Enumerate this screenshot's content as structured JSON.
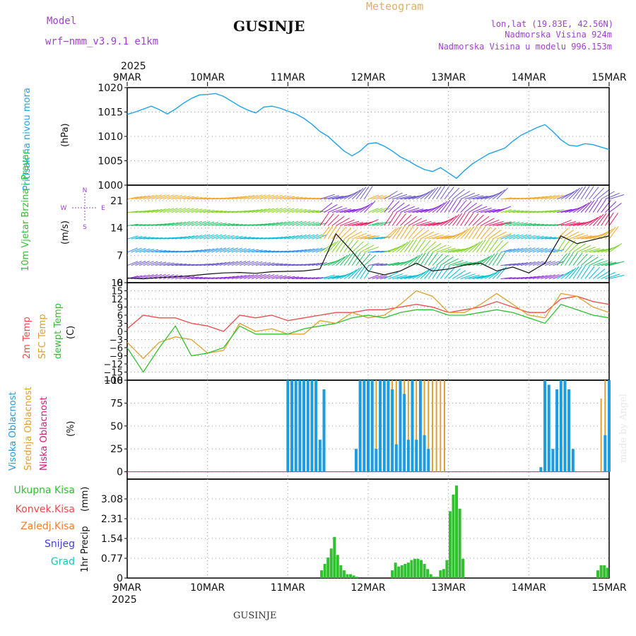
{
  "header": {
    "model_label": "Model",
    "model_name": "wrf−nmm_v3.9.1 e1km",
    "station": "GUSINJE",
    "product": "Meteogram",
    "lonlat": "lon,lat (19.83E, 42.56N)",
    "altitude": "Nadmorska Visina 924m",
    "model_altitude": "Nadmorska Visina u modelu 996.153m",
    "footer_station": "GUSINJE",
    "credit": "made by Angel"
  },
  "time_axis": {
    "year": "2025",
    "labels": [
      "9MAR",
      "10MAR",
      "11MAR",
      "12MAR",
      "13MAR",
      "14MAR",
      "15MAR"
    ]
  },
  "colors": {
    "pressure": "#1fa3e6",
    "high_cloud": "#1f9be0",
    "mid_cloud": "#e0a030",
    "low_cloud": "#d0207a",
    "temp2m": "#f04a4a",
    "sfc_temp": "#e0a030",
    "dewpoint": "#30c030",
    "precip": "#30c030",
    "meta": "#a040d0"
  },
  "chart_data": [
    {
      "type": "line",
      "panel": "pressure",
      "ylabel_title": "Pritisak na nivou mora",
      "ylabel_unit": "(hPa)",
      "ylim": [
        1000,
        1020
      ],
      "yticks": [
        1000,
        1005,
        1010,
        1015,
        1020
      ],
      "grid": true,
      "series": [
        {
          "x": [
            0,
            0.1,
            0.2,
            0.3,
            0.4,
            0.5,
            0.6,
            0.7,
            0.8,
            0.9,
            1.0,
            1.1,
            1.2,
            1.3,
            1.4,
            1.5,
            1.6,
            1.7,
            1.8,
            1.9,
            2.0,
            2.1,
            2.2,
            2.3,
            2.4,
            2.5,
            2.6,
            2.7,
            2.8,
            2.9,
            3.0,
            3.1,
            3.2,
            3.3,
            3.4,
            3.5,
            3.6,
            3.7,
            3.8,
            3.9,
            4.0,
            4.1,
            4.2,
            4.3,
            4.4,
            4.5,
            4.6,
            4.7,
            4.8,
            4.9,
            5.0,
            5.1,
            5.2,
            5.3,
            5.4,
            5.5,
            5.6,
            5.7,
            5.8,
            5.9,
            6.0
          ],
          "values": [
            1014.5,
            1015,
            1015.6,
            1016.2,
            1015.5,
            1014.6,
            1015.6,
            1016.8,
            1017.8,
            1018.5,
            1018.6,
            1018.8,
            1018.2,
            1017.2,
            1016.2,
            1015.4,
            1014.8,
            1016,
            1016.2,
            1015.8,
            1015.2,
            1014.6,
            1013.7,
            1012.5,
            1011,
            1010,
            1008.5,
            1007,
            1006,
            1007,
            1008.5,
            1008.7,
            1008,
            1007,
            1005.8,
            1005,
            1004,
            1003.2,
            1002.8,
            1003.6,
            1002.5,
            1001.4,
            1003,
            1004.4,
            1005.4,
            1006.4,
            1007,
            1007.6,
            1009,
            1010.2,
            1011,
            1011.8,
            1012.4,
            1011,
            1009.3,
            1008.2,
            1008,
            1008.5,
            1008.3,
            1007.8,
            1007.3
          ]
        }
      ]
    },
    {
      "type": "line",
      "panel": "wind",
      "ylabel_title": "10m Vjetar Brzina i Pravac",
      "ylabel_unit": "(m/s)",
      "compass": [
        "N",
        "E",
        "S",
        "W"
      ],
      "ylim": [
        0,
        25
      ],
      "yticks": [
        0,
        7,
        14,
        21
      ],
      "grid": true,
      "series": [
        {
          "name": "",
          "x": [
            0,
            0.2,
            0.4,
            0.6,
            0.8,
            1.0,
            1.2,
            1.4,
            1.6,
            1.8,
            2.0,
            2.2,
            2.4,
            2.6,
            2.8,
            3.0,
            3.2,
            3.4,
            3.6,
            3.8,
            4.0,
            4.2,
            4.4,
            4.6,
            4.8,
            5.0,
            5.2,
            5.4,
            5.6,
            5.8,
            6.0
          ],
          "values": [
            1.2,
            1.0,
            1.3,
            1.5,
            1.8,
            2.2,
            2.5,
            2.6,
            2.4,
            2.8,
            2.9,
            3.0,
            3.5,
            12.5,
            8.0,
            3.0,
            2.0,
            3.0,
            5.0,
            3.0,
            3.5,
            4.5,
            5.0,
            3.0,
            4.0,
            2.5,
            5.0,
            12.0,
            10.0,
            11.0,
            12.0
          ]
        }
      ]
    },
    {
      "type": "line",
      "panel": "temperature",
      "ylabel_title_1": "2m Temp",
      "ylabel_title_2": "SFC Temp",
      "ylabel_title_3": "dewpt Temp",
      "ylabel_unit": "(C)",
      "ylim": [
        -18,
        18
      ],
      "yticks": [
        -18,
        -15,
        -12,
        -9,
        -6,
        -3,
        0,
        3,
        6,
        9,
        12,
        15,
        18
      ],
      "ytick_labels": [
        "−18",
        "−15",
        "−12",
        "−9",
        "−6",
        "−3",
        "0",
        "3",
        "6",
        "9",
        "12",
        "15",
        "18"
      ],
      "grid": true,
      "x": [
        0,
        0.2,
        0.4,
        0.6,
        0.8,
        1.0,
        1.2,
        1.4,
        1.6,
        1.8,
        2.0,
        2.2,
        2.4,
        2.6,
        2.8,
        3.0,
        3.2,
        3.4,
        3.6,
        3.8,
        4.0,
        4.2,
        4.4,
        4.6,
        4.8,
        5.0,
        5.2,
        5.4,
        5.6,
        5.8,
        6.0
      ],
      "series": [
        {
          "name": "2m Temp",
          "values": [
            1,
            6,
            5,
            5,
            3,
            2,
            0,
            6,
            5,
            6,
            4,
            5,
            6,
            7,
            7,
            8,
            8,
            9,
            10,
            9,
            7,
            8,
            9,
            11,
            9,
            7,
            7,
            12,
            13,
            11,
            10
          ]
        },
        {
          "name": "SFC Temp",
          "values": [
            -4,
            -10,
            -4,
            -2,
            -3,
            -8,
            -7,
            3,
            0,
            1,
            -1,
            -1,
            4,
            3,
            7,
            5,
            6,
            10,
            15,
            13,
            7,
            7,
            10,
            14,
            10,
            6,
            5,
            14,
            13,
            9,
            7
          ]
        },
        {
          "name": "dewpt Temp",
          "values": [
            -6,
            -15,
            -6,
            2,
            -9,
            -8,
            -6,
            2,
            -1,
            -1,
            -1,
            1,
            2,
            3,
            5,
            6,
            5,
            7,
            8,
            8,
            6,
            6,
            7,
            8,
            7,
            5,
            3,
            10,
            8,
            6,
            5
          ]
        }
      ]
    },
    {
      "type": "bar",
      "panel": "clouds",
      "ylabel_title_1": "Visoka Oblacnost",
      "ylabel_title_2": "Srednja Oblacnost",
      "ylabel_title_3": "Niska Oblacnost",
      "ylabel_unit": "(%)",
      "ylim": [
        0,
        100
      ],
      "yticks": [
        0,
        25,
        50,
        75,
        100
      ],
      "grid": true,
      "x": [
        2.0,
        2.05,
        2.1,
        2.15,
        2.2,
        2.25,
        2.3,
        2.35,
        2.4,
        2.45,
        2.85,
        2.9,
        2.95,
        3.0,
        3.05,
        3.1,
        3.15,
        3.2,
        3.25,
        3.3,
        3.35,
        3.4,
        3.45,
        3.5,
        3.55,
        3.6,
        3.65,
        3.7,
        3.75,
        3.8,
        3.85,
        3.9,
        3.95,
        4.0,
        5.15,
        5.2,
        5.25,
        5.3,
        5.35,
        5.4,
        5.45,
        5.5,
        5.55,
        5.6,
        5.65,
        5.7,
        5.75,
        5.8,
        5.85,
        5.9,
        5.95,
        6.0
      ],
      "series": [
        {
          "name": "Visoka Oblacnost",
          "values": [
            100,
            100,
            100,
            100,
            100,
            100,
            100,
            100,
            35,
            90,
            25,
            100,
            100,
            100,
            100,
            25,
            100,
            100,
            100,
            90,
            30,
            100,
            85,
            35,
            100,
            35,
            100,
            40,
            25,
            0,
            0,
            0,
            0,
            0,
            5,
            100,
            95,
            25,
            90,
            100,
            100,
            90,
            25,
            0,
            0,
            0,
            0,
            0,
            0,
            0,
            40,
            100
          ]
        },
        {
          "name": "Srednja Oblacnost",
          "values": [
            0,
            0,
            0,
            0,
            0,
            0,
            0,
            0,
            0,
            0,
            0,
            0,
            0,
            100,
            100,
            100,
            100,
            100,
            100,
            100,
            100,
            100,
            100,
            100,
            100,
            100,
            100,
            100,
            100,
            100,
            100,
            100,
            100,
            0,
            0,
            0,
            0,
            0,
            0,
            0,
            0,
            0,
            0,
            0,
            0,
            0,
            0,
            0,
            0,
            80,
            100,
            100
          ]
        },
        {
          "name": "Niska Oblacnost",
          "values": [
            0,
            0,
            0,
            0,
            0,
            0,
            0,
            0,
            0,
            0,
            0,
            0,
            0,
            0,
            0,
            0,
            0,
            0,
            0,
            0,
            0,
            0,
            0,
            0,
            0,
            0,
            0,
            0,
            0,
            0,
            0,
            0,
            0,
            0,
            0,
            0,
            0,
            0,
            0,
            0,
            0,
            0,
            0,
            0,
            0,
            0,
            0,
            0,
            0,
            0,
            0,
            0
          ]
        }
      ]
    },
    {
      "type": "bar",
      "panel": "precip",
      "ylabel_title": "1hr Precip",
      "ylabel_unit": "(mm)",
      "legend": [
        "Ukupna Kisa",
        "Konvek.Kisa",
        "Zaledj.Kisa",
        "Snijeg",
        "Grad"
      ],
      "legend_colors": [
        "#30c030",
        "#f04a4a",
        "#f08030",
        "#4040e0",
        "#20c0c0"
      ],
      "ylim": [
        0,
        3.85
      ],
      "yticks": [
        0,
        0.77,
        1.54,
        2.31,
        3.08
      ],
      "ytick_labels": [
        "0",
        "0.77",
        "1.54",
        "2.31",
        "3.08"
      ],
      "grid": true,
      "x": [
        2.42,
        2.46,
        2.5,
        2.54,
        2.58,
        2.62,
        2.66,
        2.7,
        2.74,
        2.78,
        2.82,
        2.86,
        3.3,
        3.34,
        3.38,
        3.42,
        3.46,
        3.5,
        3.54,
        3.58,
        3.62,
        3.66,
        3.7,
        3.74,
        3.78,
        3.82,
        3.86,
        3.9,
        3.94,
        3.98,
        4.02,
        4.06,
        4.1,
        4.14,
        4.18,
        5.86,
        5.9,
        5.94,
        5.98
      ],
      "values": [
        0.3,
        0.55,
        0.8,
        1.15,
        1.6,
        0.9,
        0.5,
        0.3,
        0.15,
        0.15,
        0.1,
        0.05,
        0.3,
        0.6,
        0.45,
        0.5,
        0.55,
        0.6,
        0.7,
        0.75,
        0.75,
        0.7,
        0.55,
        0.35,
        0.15,
        0.05,
        0.05,
        0.3,
        0.35,
        0.7,
        2.6,
        3.25,
        3.6,
        2.7,
        0.75,
        0.3,
        0.5,
        0.5,
        0.4
      ]
    }
  ]
}
